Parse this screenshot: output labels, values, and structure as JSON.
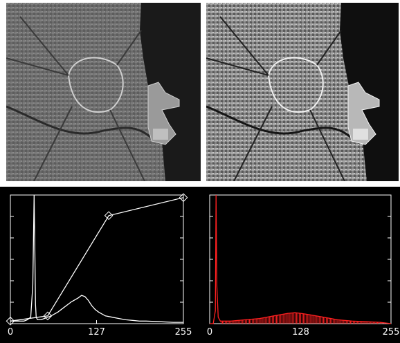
{
  "colors": {
    "panel_bg": "#000000",
    "curve_left": "#ffffff",
    "curve_right": "#ff2020",
    "frame": "#ffffff",
    "sea": "#1a1a1a"
  },
  "images": [
    {
      "name": "satellite-image-original"
    },
    {
      "name": "satellite-image-enhanced"
    }
  ],
  "chart_data": [
    {
      "type": "line",
      "title": "",
      "xlabel": "",
      "ylabel": "",
      "xlim": [
        0,
        255
      ],
      "ylim": [
        0,
        1
      ],
      "x_ticks": [
        0,
        127,
        255
      ],
      "x_tick_labels": [
        "0",
        "127",
        "255"
      ],
      "series": [
        {
          "role": "histogram",
          "color": "#ffffff",
          "x": [
            0,
            5,
            10,
            15,
            20,
            25,
            30,
            33,
            35,
            36,
            37,
            38,
            40,
            45,
            50,
            60,
            70,
            80,
            90,
            100,
            105,
            110,
            115,
            120,
            125,
            130,
            140,
            150,
            160,
            170,
            180,
            190,
            200,
            220,
            240,
            255
          ],
          "y": [
            0.02,
            0.02,
            0.02,
            0.02,
            0.02,
            0.03,
            0.05,
            0.3,
            1.0,
            0.6,
            0.15,
            0.05,
            0.03,
            0.03,
            0.04,
            0.06,
            0.09,
            0.13,
            0.17,
            0.2,
            0.22,
            0.21,
            0.18,
            0.14,
            0.11,
            0.09,
            0.06,
            0.05,
            0.04,
            0.03,
            0.025,
            0.02,
            0.02,
            0.015,
            0.01,
            0.01
          ]
        },
        {
          "role": "transfer-curve",
          "color": "#ffffff",
          "x": [
            0,
            55,
            145,
            255
          ],
          "y": [
            0.02,
            0.06,
            0.84,
            0.98
          ]
        }
      ]
    },
    {
      "type": "area",
      "title": "",
      "xlabel": "",
      "ylabel": "",
      "xlim": [
        0,
        255
      ],
      "ylim": [
        0,
        1
      ],
      "x_ticks": [
        0,
        128,
        255
      ],
      "x_tick_labels": [
        "0",
        "128",
        "255"
      ],
      "series": [
        {
          "role": "histogram-equalized",
          "color": "#ff2020",
          "x": [
            0,
            5,
            8,
            9,
            10,
            12,
            15,
            30,
            50,
            70,
            90,
            110,
            120,
            128,
            140,
            160,
            180,
            200,
            220,
            240,
            255
          ],
          "y": [
            0.0,
            0.0,
            0.1,
            1.0,
            0.3,
            0.05,
            0.02,
            0.02,
            0.03,
            0.04,
            0.06,
            0.08,
            0.085,
            0.08,
            0.07,
            0.05,
            0.03,
            0.02,
            0.015,
            0.01,
            0.0
          ]
        }
      ]
    }
  ]
}
